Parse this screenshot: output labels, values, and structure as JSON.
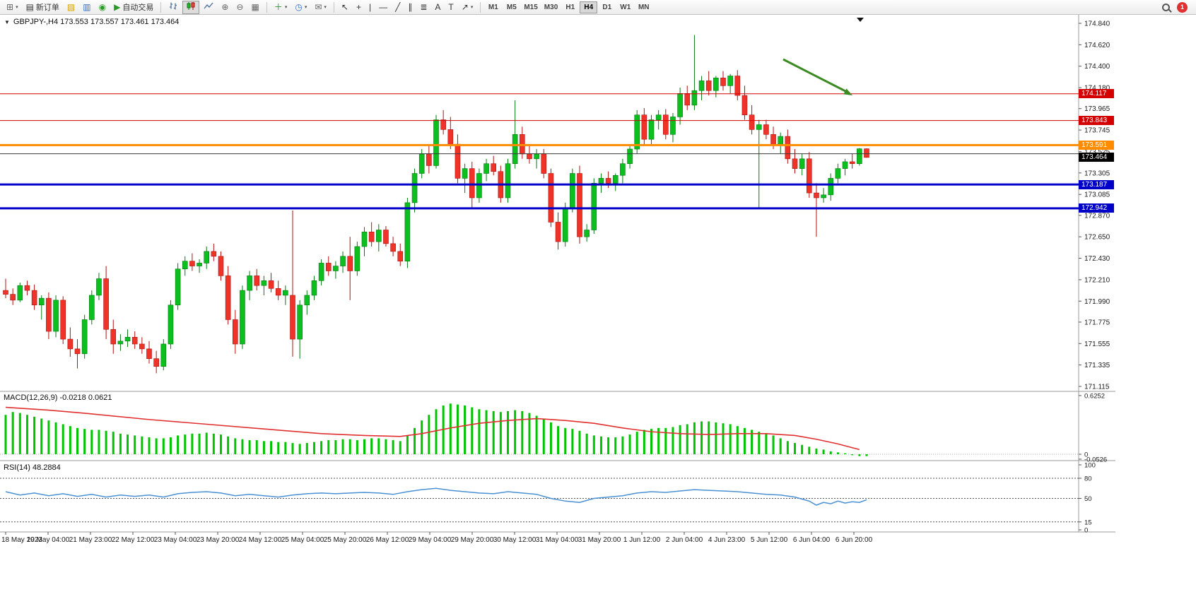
{
  "toolbar": {
    "new_order_label": "新订单",
    "autotrade_label": "自动交易",
    "timeframes": [
      "M1",
      "M5",
      "M15",
      "M30",
      "H1",
      "H4",
      "D1",
      "W1",
      "MN"
    ],
    "active_timeframe": "H4",
    "notification_badge": "1"
  },
  "icons": {
    "new_chart": "⊞",
    "dropdown": "▾",
    "new_order": "▤",
    "profiles": "▨",
    "print": "▥",
    "data_window": "◉",
    "autotrade_play": "▶",
    "zoom_in": "⊕",
    "zoom_out": "⊖",
    "tile": "▦",
    "indicators": "＋",
    "clock": "◷",
    "template": "✉",
    "cursor": "↖",
    "crosshair": "+",
    "vline": "|",
    "hline": "—",
    "trend": "╱",
    "channel": "∥",
    "fib": "≣",
    "text_tool": "A",
    "label_tool": "T",
    "arrow_tool": "↗",
    "triangle_down": "▼"
  },
  "chart_data": {
    "type": "candlestick",
    "symbol": "GBPJPY-",
    "timeframe": "H4",
    "ohlc_line": "GBPJPY-,H4 173.553 173.557 173.461 173.464",
    "price_axis": {
      "max": 174.84,
      "min": 171.115,
      "labels": [
        "174.840",
        "174.620",
        "174.400",
        "174.180",
        "173.965",
        "173.745",
        "173.525",
        "173.305",
        "173.085",
        "172.870",
        "172.650",
        "172.430",
        "172.210",
        "171.990",
        "171.775",
        "171.555",
        "171.335",
        "171.115"
      ]
    },
    "current_price": {
      "label": "173.464",
      "value": 173.464,
      "color": "#000000"
    },
    "levels": [
      {
        "value": 174.117,
        "label": "174.117",
        "color": "#d40000",
        "thickness": 1
      },
      {
        "value": 173.843,
        "label": "173.843",
        "color": "#d40000",
        "thickness": 1
      },
      {
        "value": 173.591,
        "label": "173.591",
        "color": "#ff8c00",
        "thickness": 3
      },
      {
        "value": 173.502,
        "label": "",
        "color": "#3a3a3a",
        "thickness": 1
      },
      {
        "value": 173.187,
        "label": "173.187",
        "color": "#0000c8",
        "thickness": 3
      },
      {
        "value": 172.942,
        "label": "172.942",
        "color": "#0000c8",
        "thickness": 3
      }
    ],
    "colors": {
      "up": "#0bbf1e",
      "up_border": "#067812",
      "down": "#f03328",
      "down_border": "#b01010"
    },
    "arrow_color": "#3c8a22",
    "candles": [
      [
        172.1,
        172.22,
        172.02,
        172.06
      ],
      [
        172.06,
        172.12,
        171.95,
        172.0
      ],
      [
        172.0,
        172.18,
        171.98,
        172.15
      ],
      [
        172.15,
        172.2,
        172.05,
        172.1
      ],
      [
        172.1,
        172.16,
        171.9,
        171.95
      ],
      [
        171.95,
        172.05,
        171.8,
        172.02
      ],
      [
        172.02,
        172.08,
        171.6,
        171.68
      ],
      [
        171.68,
        172.05,
        171.62,
        172.0
      ],
      [
        172.0,
        172.04,
        171.55,
        171.6
      ],
      [
        171.6,
        171.72,
        171.42,
        171.5
      ],
      [
        171.5,
        171.6,
        171.3,
        171.45
      ],
      [
        171.45,
        171.85,
        171.4,
        171.8
      ],
      [
        171.8,
        172.1,
        171.75,
        172.05
      ],
      [
        172.05,
        172.28,
        172.0,
        172.22
      ],
      [
        172.22,
        172.35,
        171.6,
        171.7
      ],
      [
        171.7,
        171.8,
        171.45,
        171.55
      ],
      [
        171.55,
        171.65,
        171.48,
        171.58
      ],
      [
        171.58,
        171.7,
        171.52,
        171.62
      ],
      [
        171.62,
        171.68,
        171.5,
        171.55
      ],
      [
        171.55,
        171.62,
        171.45,
        171.5
      ],
      [
        171.5,
        171.58,
        171.35,
        171.4
      ],
      [
        171.4,
        171.48,
        171.25,
        171.32
      ],
      [
        171.32,
        171.6,
        171.28,
        171.55
      ],
      [
        171.55,
        172.0,
        171.5,
        171.95
      ],
      [
        171.95,
        172.38,
        171.9,
        172.32
      ],
      [
        172.32,
        172.45,
        172.25,
        172.4
      ],
      [
        172.4,
        172.48,
        172.3,
        172.35
      ],
      [
        172.35,
        172.42,
        172.28,
        172.38
      ],
      [
        172.38,
        172.55,
        172.32,
        172.5
      ],
      [
        172.5,
        172.58,
        172.4,
        172.45
      ],
      [
        172.45,
        172.5,
        172.2,
        172.25
      ],
      [
        172.25,
        172.35,
        171.75,
        171.8
      ],
      [
        171.8,
        171.9,
        171.45,
        171.55
      ],
      [
        171.55,
        172.15,
        171.5,
        172.1
      ],
      [
        172.1,
        172.3,
        172.0,
        172.25
      ],
      [
        172.25,
        172.32,
        172.1,
        172.15
      ],
      [
        172.15,
        172.25,
        172.05,
        172.2
      ],
      [
        172.2,
        172.28,
        172.08,
        172.12
      ],
      [
        172.12,
        172.2,
        172.0,
        172.05
      ],
      [
        172.05,
        172.15,
        171.95,
        172.1
      ],
      [
        172.05,
        172.92,
        171.42,
        171.6
      ],
      [
        171.6,
        172.0,
        171.4,
        171.95
      ],
      [
        171.95,
        172.1,
        171.85,
        172.05
      ],
      [
        172.05,
        172.25,
        172.0,
        172.2
      ],
      [
        172.2,
        172.42,
        172.15,
        172.38
      ],
      [
        172.38,
        172.45,
        172.25,
        172.3
      ],
      [
        172.3,
        172.4,
        172.22,
        172.35
      ],
      [
        172.35,
        172.5,
        172.28,
        172.45
      ],
      [
        172.45,
        172.65,
        172.0,
        172.3
      ],
      [
        172.3,
        172.6,
        172.25,
        172.55
      ],
      [
        172.55,
        172.75,
        172.45,
        172.7
      ],
      [
        172.7,
        172.8,
        172.55,
        172.6
      ],
      [
        172.6,
        172.78,
        172.5,
        172.72
      ],
      [
        172.72,
        172.76,
        172.55,
        172.58
      ],
      [
        172.58,
        172.65,
        172.45,
        172.5
      ],
      [
        172.5,
        172.58,
        172.35,
        172.4
      ],
      [
        172.4,
        173.05,
        172.33,
        173.0
      ],
      [
        173.0,
        173.35,
        172.9,
        173.3
      ],
      [
        173.3,
        173.55,
        173.25,
        173.5
      ],
      [
        173.5,
        173.6,
        173.3,
        173.38
      ],
      [
        173.38,
        173.9,
        173.35,
        173.85
      ],
      [
        173.85,
        173.95,
        173.7,
        173.75
      ],
      [
        173.75,
        173.88,
        173.55,
        173.6
      ],
      [
        173.6,
        173.7,
        173.2,
        173.25
      ],
      [
        173.25,
        173.4,
        173.1,
        173.35
      ],
      [
        173.35,
        173.42,
        172.95,
        173.05
      ],
      [
        173.05,
        173.35,
        173.0,
        173.3
      ],
      [
        173.3,
        173.45,
        173.22,
        173.4
      ],
      [
        173.4,
        173.48,
        173.28,
        173.32
      ],
      [
        173.32,
        173.38,
        173.0,
        173.05
      ],
      [
        173.05,
        173.45,
        173.0,
        173.4
      ],
      [
        173.4,
        174.05,
        173.35,
        173.7
      ],
      [
        173.7,
        173.78,
        173.45,
        173.5
      ],
      [
        173.5,
        173.6,
        173.4,
        173.45
      ],
      [
        173.45,
        173.55,
        173.35,
        173.5
      ],
      [
        173.5,
        173.55,
        173.25,
        173.3
      ],
      [
        173.3,
        173.35,
        172.75,
        172.8
      ],
      [
        172.8,
        172.9,
        172.52,
        172.6
      ],
      [
        172.6,
        173.0,
        172.55,
        172.95
      ],
      [
        172.95,
        173.35,
        172.9,
        173.3
      ],
      [
        173.3,
        173.38,
        172.58,
        172.65
      ],
      [
        172.65,
        172.78,
        172.6,
        172.72
      ],
      [
        172.72,
        173.25,
        172.68,
        173.2
      ],
      [
        173.2,
        173.3,
        173.1,
        173.25
      ],
      [
        173.25,
        173.32,
        173.15,
        173.2
      ],
      [
        173.2,
        173.3,
        173.12,
        173.28
      ],
      [
        173.28,
        173.45,
        173.2,
        173.4
      ],
      [
        173.4,
        173.6,
        173.35,
        173.55
      ],
      [
        173.55,
        173.95,
        173.5,
        173.9
      ],
      [
        173.9,
        173.97,
        173.6,
        173.65
      ],
      [
        173.65,
        173.9,
        173.6,
        173.85
      ],
      [
        173.85,
        173.95,
        173.75,
        173.9
      ],
      [
        173.9,
        173.96,
        173.65,
        173.7
      ],
      [
        173.7,
        173.92,
        173.62,
        173.88
      ],
      [
        173.88,
        174.18,
        173.8,
        174.12
      ],
      [
        174.12,
        174.2,
        173.95,
        174.0
      ],
      [
        174.0,
        174.72,
        173.95,
        174.15
      ],
      [
        174.15,
        174.3,
        174.05,
        174.25
      ],
      [
        174.25,
        174.35,
        174.1,
        174.15
      ],
      [
        174.15,
        174.3,
        174.08,
        174.28
      ],
      [
        174.28,
        174.35,
        174.15,
        174.2
      ],
      [
        174.2,
        174.32,
        174.12,
        174.3
      ],
      [
        174.3,
        174.36,
        174.05,
        174.1
      ],
      [
        174.1,
        174.2,
        173.85,
        173.9
      ],
      [
        173.9,
        174.0,
        173.7,
        173.75
      ],
      [
        173.75,
        173.85,
        172.95,
        173.8
      ],
      [
        173.8,
        173.85,
        173.65,
        173.7
      ],
      [
        173.7,
        173.78,
        173.55,
        173.6
      ],
      [
        173.6,
        173.72,
        173.5,
        173.68
      ],
      [
        173.68,
        173.75,
        173.4,
        173.45
      ],
      [
        173.45,
        173.55,
        173.3,
        173.35
      ],
      [
        173.35,
        173.5,
        173.28,
        173.45
      ],
      [
        173.45,
        173.52,
        173.05,
        173.1
      ],
      [
        173.1,
        173.2,
        172.65,
        173.05
      ],
      [
        173.05,
        173.15,
        173.0,
        173.08
      ],
      [
        173.08,
        173.3,
        173.02,
        173.25
      ],
      [
        173.25,
        173.4,
        173.2,
        173.35
      ],
      [
        173.35,
        173.45,
        173.28,
        173.42
      ],
      [
        173.42,
        173.5,
        173.35,
        173.4
      ],
      [
        173.4,
        173.56,
        173.38,
        173.553
      ],
      [
        173.553,
        173.557,
        173.461,
        173.464
      ]
    ],
    "time_axis": [
      "18 May 2023",
      "19 May 04:00",
      "21 May 23:00",
      "22 May 12:00",
      "23 May 04:00",
      "23 May 20:00",
      "24 May 12:00",
      "25 May 04:00",
      "25 May 20:00",
      "26 May 12:00",
      "29 May 04:00",
      "29 May 20:00",
      "30 May 12:00",
      "31 May 04:00",
      "31 May 20:00",
      "1 Jun 12:00",
      "2 Jun 04:00",
      "4 Jun 23:00",
      "5 Jun 12:00",
      "6 Jun 04:00",
      "6 Jun 20:00"
    ],
    "macd": {
      "label": "MACD(12,26,9) -0.0218 0.0621",
      "axis_labels": [
        "0.6252",
        "0",
        "-0.0526"
      ],
      "max": 0.6252,
      "histogram_color": "#00c400",
      "signal_color": "#e03030",
      "histogram": [
        0.42,
        0.45,
        0.44,
        0.42,
        0.4,
        0.38,
        0.36,
        0.34,
        0.32,
        0.3,
        0.28,
        0.27,
        0.26,
        0.26,
        0.25,
        0.24,
        0.22,
        0.21,
        0.2,
        0.19,
        0.18,
        0.17,
        0.17,
        0.18,
        0.2,
        0.21,
        0.22,
        0.22,
        0.23,
        0.22,
        0.21,
        0.19,
        0.17,
        0.16,
        0.15,
        0.15,
        0.14,
        0.14,
        0.13,
        0.13,
        0.12,
        0.11,
        0.12,
        0.13,
        0.14,
        0.15,
        0.15,
        0.16,
        0.16,
        0.15,
        0.16,
        0.17,
        0.17,
        0.16,
        0.15,
        0.14,
        0.2,
        0.28,
        0.36,
        0.42,
        0.48,
        0.52,
        0.54,
        0.53,
        0.52,
        0.5,
        0.48,
        0.47,
        0.46,
        0.45,
        0.46,
        0.47,
        0.46,
        0.44,
        0.41,
        0.38,
        0.34,
        0.3,
        0.28,
        0.27,
        0.25,
        0.22,
        0.2,
        0.19,
        0.18,
        0.18,
        0.19,
        0.21,
        0.24,
        0.26,
        0.27,
        0.28,
        0.28,
        0.29,
        0.31,
        0.32,
        0.34,
        0.35,
        0.35,
        0.34,
        0.33,
        0.32,
        0.3,
        0.28,
        0.26,
        0.24,
        0.22,
        0.2,
        0.17,
        0.14,
        0.12,
        0.1,
        0.08,
        0.06,
        0.05,
        0.03,
        0.02,
        0.01,
        -0.01,
        -0.02,
        -0.02
      ],
      "signal_points": [
        [
          0,
          0.5
        ],
        [
          6,
          0.47
        ],
        [
          12,
          0.43
        ],
        [
          20,
          0.37
        ],
        [
          28,
          0.32
        ],
        [
          36,
          0.27
        ],
        [
          44,
          0.22
        ],
        [
          50,
          0.2
        ],
        [
          55,
          0.19
        ],
        [
          58,
          0.22
        ],
        [
          62,
          0.28
        ],
        [
          66,
          0.33
        ],
        [
          70,
          0.36
        ],
        [
          74,
          0.38
        ],
        [
          78,
          0.36
        ],
        [
          82,
          0.33
        ],
        [
          86,
          0.28
        ],
        [
          90,
          0.24
        ],
        [
          94,
          0.22
        ],
        [
          98,
          0.21
        ],
        [
          102,
          0.22
        ],
        [
          106,
          0.22
        ],
        [
          110,
          0.2
        ],
        [
          113,
          0.16
        ],
        [
          116,
          0.11
        ],
        [
          119,
          0.05
        ]
      ]
    },
    "rsi": {
      "label": "RSI(14) 48.2884",
      "axis_labels": [
        "100",
        "80",
        "50",
        "15",
        "0"
      ],
      "levels": [
        80,
        50,
        15
      ],
      "line_color": "#4a90d2",
      "points": [
        [
          0,
          60
        ],
        [
          2,
          55
        ],
        [
          4,
          58
        ],
        [
          6,
          54
        ],
        [
          8,
          57
        ],
        [
          10,
          53
        ],
        [
          12,
          56
        ],
        [
          14,
          52
        ],
        [
          16,
          55
        ],
        [
          18,
          53
        ],
        [
          20,
          55
        ],
        [
          22,
          52
        ],
        [
          24,
          57
        ],
        [
          26,
          59
        ],
        [
          28,
          60
        ],
        [
          30,
          58
        ],
        [
          32,
          54
        ],
        [
          34,
          56
        ],
        [
          36,
          54
        ],
        [
          38,
          52
        ],
        [
          40,
          55
        ],
        [
          42,
          57
        ],
        [
          44,
          58
        ],
        [
          46,
          57
        ],
        [
          48,
          58
        ],
        [
          50,
          59
        ],
        [
          52,
          58
        ],
        [
          54,
          56
        ],
        [
          56,
          60
        ],
        [
          58,
          63
        ],
        [
          60,
          65
        ],
        [
          62,
          62
        ],
        [
          64,
          60
        ],
        [
          66,
          58
        ],
        [
          68,
          57
        ],
        [
          70,
          60
        ],
        [
          72,
          58
        ],
        [
          74,
          56
        ],
        [
          76,
          50
        ],
        [
          78,
          46
        ],
        [
          80,
          44
        ],
        [
          82,
          50
        ],
        [
          84,
          52
        ],
        [
          86,
          54
        ],
        [
          88,
          58
        ],
        [
          90,
          60
        ],
        [
          92,
          59
        ],
        [
          94,
          61
        ],
        [
          96,
          63
        ],
        [
          98,
          62
        ],
        [
          100,
          61
        ],
        [
          102,
          60
        ],
        [
          104,
          58
        ],
        [
          106,
          56
        ],
        [
          108,
          55
        ],
        [
          110,
          52
        ],
        [
          112,
          46
        ],
        [
          113,
          40
        ],
        [
          114,
          44
        ],
        [
          115,
          42
        ],
        [
          116,
          46
        ],
        [
          117,
          43
        ],
        [
          118,
          45
        ],
        [
          119,
          44
        ],
        [
          120,
          48
        ]
      ]
    }
  }
}
